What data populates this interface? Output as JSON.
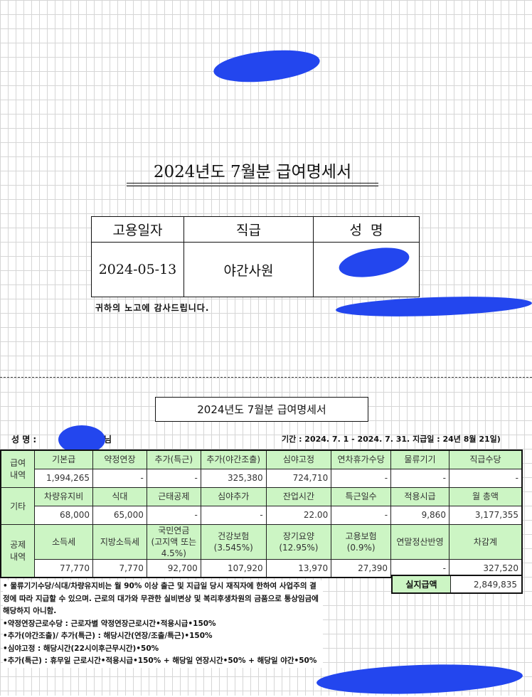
{
  "top": {
    "title": "2024년도 7월분 급여명세서",
    "headers": [
      "고용일자",
      "직급",
      "성  명"
    ],
    "values": [
      "2024-05-13",
      "야간사원",
      ""
    ],
    "thanks": "귀하의 노고에 감사드립니다."
  },
  "slip": {
    "title": "2024년도 7월분 급여명세서",
    "name_label": "성    명 :",
    "name_suffix": "님",
    "period": "기간 : 2024. 7. 1 - 2024. 7. 31. 지급일 : 24년 8월 21일)",
    "sections": [
      {
        "label": "급여\n내역",
        "headers": [
          "기본급",
          "약정연장",
          "추가(특근)",
          "추가(야간조출)",
          "심야고정",
          "연차휴가수당",
          "물류기기",
          "직급수당"
        ],
        "values": [
          "1,994,265",
          "-",
          "-",
          "325,380",
          "724,710",
          "-",
          "-",
          "-"
        ]
      },
      {
        "label": "기타",
        "headers": [
          "차량유지비",
          "식대",
          "근태공제",
          "심야추가",
          "잔업시간",
          "특근일수",
          "적용시급",
          "월 총액"
        ],
        "values": [
          "68,000",
          "65,000",
          "-",
          "-",
          "22.00",
          "-",
          "9,860",
          "3,177,355"
        ]
      },
      {
        "label": "공제\n내역",
        "headers": [
          "소득세",
          "지방소득세",
          "국민연금\n(고지액 또는\n4.5%)",
          "건강보험\n(3.545%)",
          "장기요양\n(12.95%)",
          "고용보험\n(0.9%)",
          "연말정산반영",
          "차감계"
        ],
        "values": [
          "77,770",
          "7,770",
          "92,700",
          "107,920",
          "13,970",
          "27,390",
          "-",
          "327,520"
        ]
      }
    ],
    "net_label": "실지급액",
    "net_value": "2,849,835",
    "notes": [
      "• 물류기기수당/식대/차량유지비는 월 90% 이상 출근 및 지급일 당시 재직자에 한하여 사업주의 결정에 따라 지급할 수 있으며. 근로의 대가와 무관한 실비변상 및 복리후생차원의 금품으로 통상임금에 해당하지 아니함.",
      "•약정연장근로수당 : 근로자별 약정연장근로시간•적용시급•150%",
      "•추가(야간조출)/ 추가(특근) : 해당시간(연장/조출/특근)•150%",
      "•심야고정 : 해당시간(22시이후근무시간)•50%",
      "•추가(특근) : 휴무일 근로시간•적용시급•150% + 해당일 연장시간•50% + 해당일 야간•50%"
    ]
  },
  "colors": {
    "header_green": "#ccf5c4",
    "redaction_blue": "#2346ee"
  }
}
